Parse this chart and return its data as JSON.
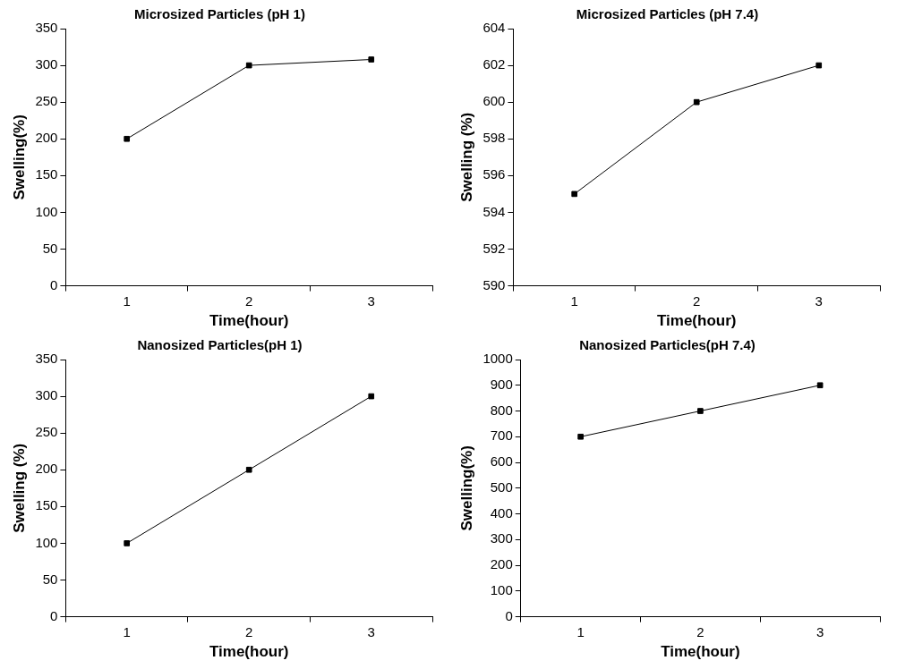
{
  "chart_data": [
    {
      "type": "line",
      "title": "Microsized Particles (pH 1)",
      "xlabel": "Time(hour)",
      "ylabel": "Swelling(%)",
      "categories": [
        "1",
        "2",
        "3"
      ],
      "series": [
        {
          "color": "#000000",
          "values": [
            200,
            300,
            308
          ]
        }
      ],
      "ylim": [
        0,
        350
      ],
      "yticks": [
        0,
        50,
        100,
        150,
        200,
        250,
        300,
        350
      ],
      "marker": "square",
      "legend": false
    },
    {
      "type": "line",
      "title": "Microsized Particles (pH 7.4)",
      "xlabel": "Time(hour)",
      "ylabel": "Swelling (%)",
      "categories": [
        "1",
        "2",
        "3"
      ],
      "series": [
        {
          "color": "#000000",
          "values": [
            595,
            600,
            602
          ]
        }
      ],
      "ylim": [
        590,
        604
      ],
      "yticks": [
        590,
        592,
        594,
        596,
        598,
        600,
        602,
        604
      ],
      "marker": "square",
      "legend": false
    },
    {
      "type": "line",
      "title": "Nanosized Particles(pH 1)",
      "xlabel": "Time(hour)",
      "ylabel": "Swelling (%)",
      "categories": [
        "1",
        "2",
        "3"
      ],
      "series": [
        {
          "color": "#000000",
          "values": [
            100,
            200,
            300
          ]
        }
      ],
      "ylim": [
        0,
        350
      ],
      "yticks": [
        0,
        50,
        100,
        150,
        200,
        250,
        300,
        350
      ],
      "marker": "square",
      "legend": false
    },
    {
      "type": "line",
      "title": "Nanosized Particles(pH 7.4)",
      "xlabel": "Time(hour)",
      "ylabel": "Swelling(%)",
      "categories": [
        "1",
        "2",
        "3"
      ],
      "series": [
        {
          "color": "#000000",
          "values": [
            700,
            800,
            900
          ]
        }
      ],
      "ylim": [
        0,
        1000
      ],
      "yticks": [
        0,
        100,
        200,
        300,
        400,
        500,
        600,
        700,
        800,
        900,
        1000
      ],
      "marker": "square",
      "legend": false
    }
  ]
}
